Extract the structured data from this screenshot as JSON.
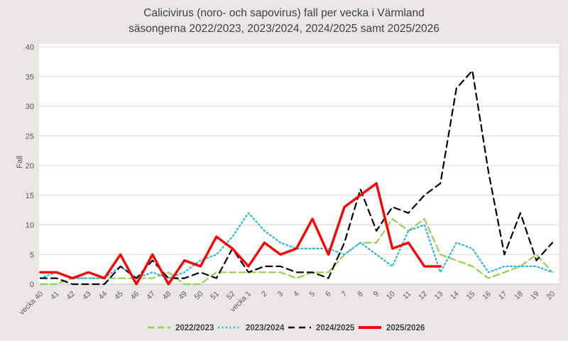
{
  "title": {
    "line1": "Calicivirus (noro- och sapovirus) fall per vecka i Värmland",
    "line2": "säsongerna 2022/2023, 2023/2024, 2024/2025 samt 2025/2026"
  },
  "chart_data": {
    "type": "line",
    "title": "Calicivirus (noro- och sapovirus) fall per vecka i Värmland säsongerna 2022/2023, 2023/2024, 2024/2025 samt 2025/2026",
    "xlabel": "",
    "ylabel": "Fall",
    "ylim": [
      0,
      40
    ],
    "yticks": [
      0,
      5,
      10,
      15,
      20,
      25,
      30,
      35,
      40
    ],
    "grid": true,
    "legend_position": "bottom",
    "categories": [
      "vecka 40",
      "41",
      "42",
      "43",
      "44",
      "45",
      "46",
      "47",
      "48",
      "49",
      "50",
      "51",
      "52",
      "vecka 1",
      "2",
      "3",
      "4",
      "5",
      "6",
      "7",
      "8",
      "9",
      "10",
      "11",
      "12",
      "13",
      "14",
      "15",
      "16",
      "17",
      "18",
      "19",
      "20"
    ],
    "series": [
      {
        "name": "2022/2023",
        "color": "#92D050",
        "line_style": "dashed",
        "values": [
          0,
          0,
          1,
          1,
          1,
          1,
          1,
          1,
          2,
          0,
          0,
          2,
          2,
          2,
          2,
          2,
          1,
          2,
          2,
          5,
          7,
          7,
          11,
          9,
          11,
          5,
          4,
          3,
          1,
          2,
          3,
          5,
          2
        ]
      },
      {
        "name": "2023/2024",
        "color": "#2FB4E9",
        "line_style": "dotted",
        "values": [
          1,
          2,
          1,
          1,
          1,
          3,
          1,
          2,
          1,
          2,
          4,
          5,
          8,
          12,
          9,
          7,
          6,
          6,
          6,
          5,
          7,
          5,
          3,
          9,
          10,
          2,
          7,
          6,
          2,
          3,
          3,
          3,
          2
        ]
      },
      {
        "name": "2024/2025",
        "color": "#000000",
        "line_style": "dashed",
        "values": [
          1,
          1,
          0,
          0,
          0,
          3,
          1,
          4,
          1,
          1,
          2,
          1,
          6,
          2,
          3,
          3,
          2,
          2,
          1,
          7,
          16,
          9,
          13,
          12,
          15,
          17,
          33,
          36,
          19,
          5,
          12,
          4,
          7
        ]
      },
      {
        "name": "2025/2026",
        "color": "#FF0000",
        "line_style": "solid",
        "values": [
          2,
          2,
          1,
          2,
          1,
          5,
          0,
          5,
          0,
          4,
          3,
          8,
          6,
          3,
          7,
          5,
          6,
          11,
          5,
          13,
          15,
          17,
          6,
          7,
          3,
          3,
          null,
          null,
          null,
          null,
          null,
          null,
          null
        ]
      }
    ],
    "colors": {
      "page_background": "#E8E7E4",
      "plot_background": "#FFFFFF",
      "gridline": "#D9D9D9",
      "axis_line": "#BFBFBF",
      "title_text": "#3F3F3F",
      "tick_text": "#595959",
      "legend_text": "#3F3F3F"
    }
  }
}
